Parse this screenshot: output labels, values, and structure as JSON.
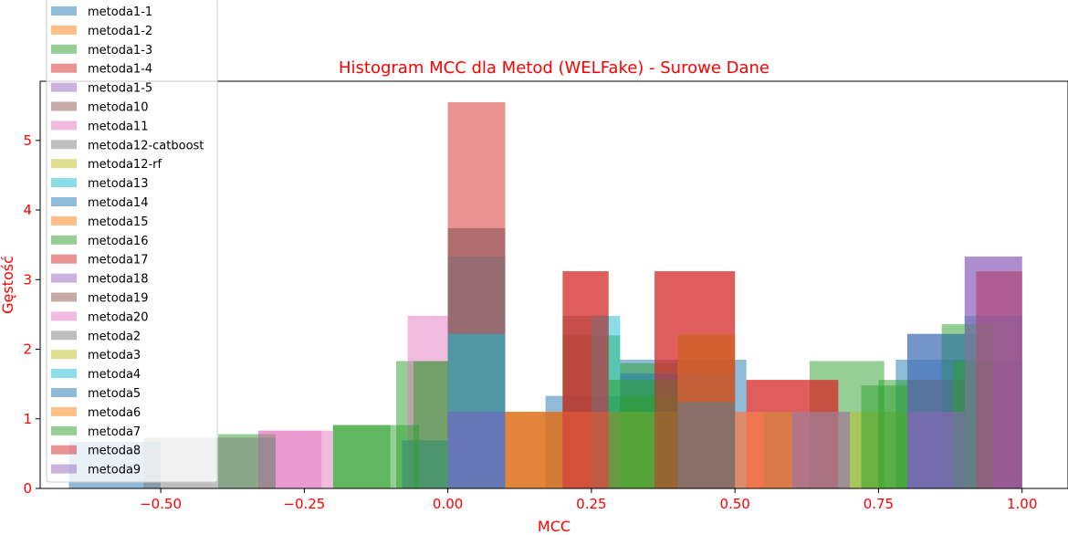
{
  "chart_data": {
    "type": "histogram",
    "title": "Histogram MCC dla Metod (WELFake) - Surowe Dane",
    "xlabel": "MCC",
    "ylabel": "Gęstość",
    "xlim": [
      -0.71,
      1.08
    ],
    "ylim": [
      0,
      5.85
    ],
    "x_ticks": [
      "−0.50",
      "−0.25",
      "0.00",
      "0.25",
      "0.50",
      "0.75",
      "1.00"
    ],
    "x_tick_values": [
      -0.5,
      -0.25,
      0.0,
      0.25,
      0.5,
      0.75,
      1.0
    ],
    "y_ticks": [
      "0",
      "1",
      "2",
      "3",
      "4",
      "5"
    ],
    "y_tick_values": [
      0,
      1,
      2,
      3,
      4,
      5
    ],
    "legend_position": "upper-left",
    "series": [
      {
        "name": "metoda1-1",
        "color": "#1f77b4",
        "bins": [
          [
            -0.66,
            -0.5,
            0.67
          ],
          [
            0.17,
            0.3,
            1.33
          ],
          [
            0.3,
            0.52,
            1.85
          ],
          [
            0.78,
            1.0,
            1.85
          ]
        ]
      },
      {
        "name": "metoda1-2",
        "color": "#ff7f0e",
        "bins": [
          [
            0.1,
            0.2,
            1.1
          ],
          [
            0.4,
            0.5,
            2.2
          ]
        ]
      },
      {
        "name": "metoda1-3",
        "color": "#2ca02c",
        "bins": [
          [
            -0.09,
            0.0,
            1.83
          ],
          [
            0.2,
            0.3,
            2.2
          ],
          [
            0.3,
            0.4,
            1.8
          ],
          [
            0.63,
            0.76,
            1.83
          ]
        ]
      },
      {
        "name": "metoda1-4",
        "color": "#d62728",
        "bins": [
          [
            0.0,
            0.1,
            5.55
          ],
          [
            0.2,
            0.28,
            3.12
          ],
          [
            0.36,
            0.5,
            3.12
          ],
          [
            0.52,
            0.68,
            1.56
          ],
          [
            0.92,
            1.0,
            3.12
          ]
        ]
      },
      {
        "name": "metoda1-5",
        "color": "#9467bd",
        "bins": [
          [
            0.8,
            0.92,
            2.22
          ],
          [
            0.9,
            1.0,
            3.33
          ]
        ]
      },
      {
        "name": "metoda10",
        "color": "#8c564b",
        "bins": [
          [
            0.1,
            0.22,
            1.1
          ],
          [
            0.2,
            0.28,
            2.48
          ]
        ]
      },
      {
        "name": "metoda11",
        "color": "#e377c2",
        "bins": [
          [
            -0.33,
            -0.22,
            0.83
          ],
          [
            -0.07,
            0.0,
            2.48
          ],
          [
            0.2,
            0.4,
            1.1
          ]
        ]
      },
      {
        "name": "metoda12-catboost",
        "color": "#7f7f7f",
        "bins": [
          [
            -0.53,
            -0.4,
            0.73
          ],
          [
            0.2,
            0.3,
            1.1
          ],
          [
            0.4,
            0.5,
            1.65
          ]
        ]
      },
      {
        "name": "metoda12-rf",
        "color": "#bcbd22",
        "bins": [
          [
            0.4,
            0.5,
            2.22
          ],
          [
            0.7,
            0.8,
            1.1
          ]
        ]
      },
      {
        "name": "metoda13",
        "color": "#17becf",
        "bins": [
          [
            0.0,
            0.1,
            2.22
          ],
          [
            0.25,
            0.3,
            2.48
          ],
          [
            0.4,
            0.5,
            1.24
          ]
        ]
      },
      {
        "name": "metoda14",
        "color": "#1f77b4",
        "bins": [
          [
            0.0,
            0.1,
            3.33
          ],
          [
            0.3,
            0.4,
            1.65
          ],
          [
            0.9,
            1.0,
            2.48
          ]
        ]
      },
      {
        "name": "metoda15",
        "color": "#ff7f0e",
        "bins": [
          [
            0.2,
            0.3,
            1.1
          ]
        ]
      },
      {
        "name": "metoda16",
        "color": "#2ca02c",
        "bins": [
          [
            -0.4,
            -0.3,
            0.78
          ],
          [
            -0.2,
            -0.1,
            0.91
          ],
          [
            0.28,
            0.4,
            1.56
          ],
          [
            0.72,
            0.8,
            1.48
          ],
          [
            0.86,
            0.95,
            2.36
          ]
        ]
      },
      {
        "name": "metoda17",
        "color": "#d62728",
        "bins": [
          [
            0.0,
            0.1,
            3.74
          ],
          [
            0.52,
            0.68,
            1.56
          ]
        ]
      },
      {
        "name": "metoda18",
        "color": "#9467bd",
        "bins": [
          [
            0.0,
            0.1,
            1.1
          ],
          [
            0.8,
            0.9,
            1.1
          ]
        ]
      },
      {
        "name": "metoda19",
        "color": "#8c564b",
        "bins": [
          [
            0.0,
            0.1,
            1.1
          ],
          [
            0.8,
            0.9,
            1.56
          ]
        ]
      },
      {
        "name": "metoda20",
        "color": "#e377c2",
        "bins": [
          [
            -0.33,
            -0.2,
            0.83
          ],
          [
            0.5,
            0.7,
            1.1
          ]
        ]
      },
      {
        "name": "metoda2",
        "color": "#7f7f7f",
        "bins": [
          [
            -0.4,
            -0.3,
            0.73
          ],
          [
            0.0,
            0.1,
            3.74
          ],
          [
            0.55,
            0.7,
            1.1
          ]
        ]
      },
      {
        "name": "metoda3",
        "color": "#bcbd22",
        "bins": [
          [
            0.3,
            0.4,
            1.1
          ]
        ]
      },
      {
        "name": "metoda4",
        "color": "#17becf",
        "bins": [
          [
            0.0,
            0.1,
            2.22
          ],
          [
            0.4,
            0.5,
            1.24
          ]
        ]
      },
      {
        "name": "metoda5",
        "color": "#1f77b4",
        "bins": [
          [
            -0.08,
            0.0,
            0.69
          ],
          [
            0.0,
            0.1,
            1.1
          ],
          [
            0.8,
            0.9,
            2.22
          ]
        ]
      },
      {
        "name": "metoda6",
        "color": "#ff7f0e",
        "bins": [
          [
            0.1,
            0.2,
            1.1
          ],
          [
            0.5,
            0.6,
            1.1
          ]
        ]
      },
      {
        "name": "metoda7",
        "color": "#2ca02c",
        "bins": [
          [
            -0.2,
            -0.05,
            0.91
          ],
          [
            -0.06,
            0.0,
            1.83
          ],
          [
            0.3,
            0.4,
            1.33
          ],
          [
            0.75,
            0.8,
            1.56
          ],
          [
            0.88,
            0.95,
            1.83
          ]
        ]
      },
      {
        "name": "metoda8",
        "color": "#d62728",
        "bins": [
          [
            0.2,
            0.28,
            3.12
          ],
          [
            0.36,
            0.5,
            3.12
          ],
          [
            0.92,
            1.0,
            3.12
          ]
        ]
      },
      {
        "name": "metoda9",
        "color": "#9467bd",
        "bins": [
          [
            0.0,
            0.1,
            1.1
          ],
          [
            0.8,
            0.9,
            1.1
          ],
          [
            0.9,
            1.0,
            3.33
          ]
        ]
      }
    ]
  }
}
